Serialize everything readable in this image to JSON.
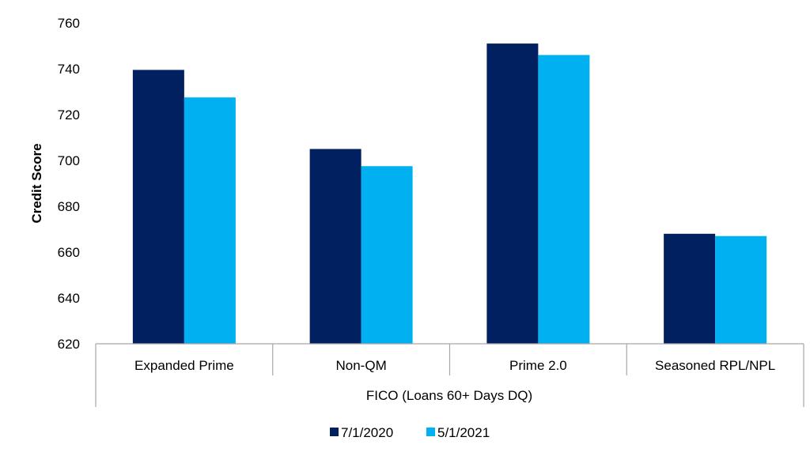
{
  "chart_data": {
    "type": "bar",
    "title": "",
    "ylabel": "Credit Score",
    "xlabel": "FICO (Loans 60+ Days DQ)",
    "ylim": [
      620,
      760
    ],
    "yticks": [
      620,
      640,
      660,
      680,
      700,
      720,
      740,
      760
    ],
    "categories": [
      "Expanded Prime",
      "Non-QM",
      "Prime 2.0",
      "Seasoned RPL/NPL"
    ],
    "series": [
      {
        "name": "7/1/2020",
        "color": "#002060",
        "values": [
          739.5,
          705,
          751,
          668
        ]
      },
      {
        "name": "5/1/2021",
        "color": "#00B0F0",
        "values": [
          727.5,
          697.5,
          746,
          667
        ]
      }
    ],
    "grid": false,
    "legend": "bottom-center"
  }
}
